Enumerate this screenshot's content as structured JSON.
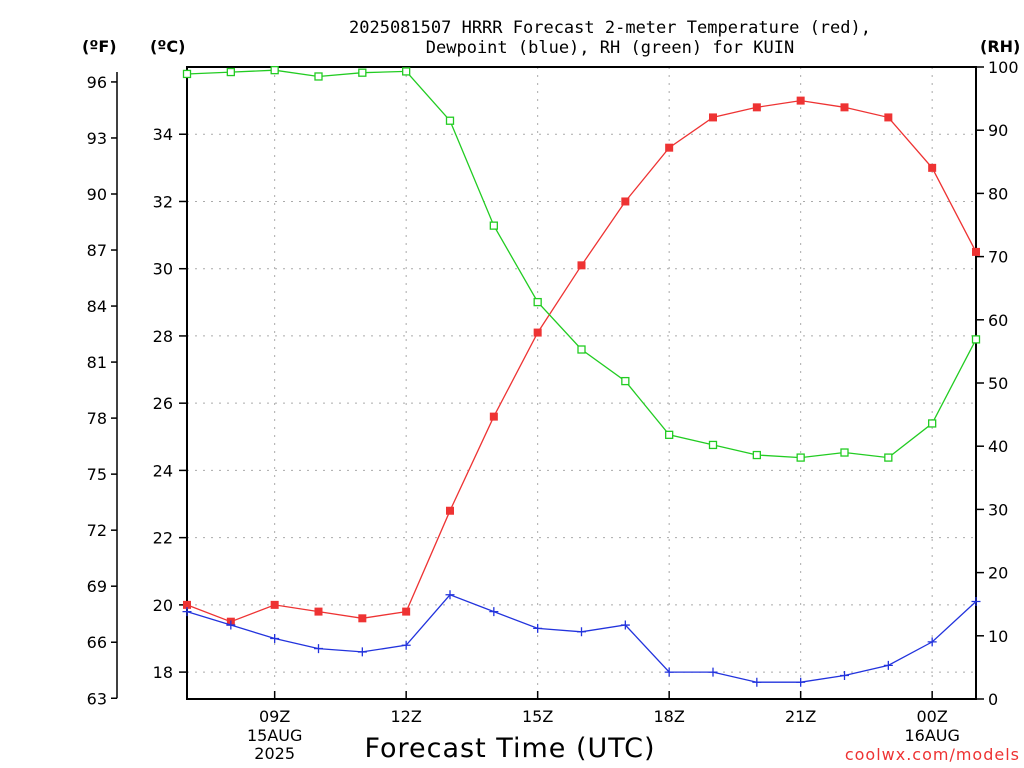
{
  "header": {
    "title_line1": "2025081507 HRRR Forecast 2-meter Temperature (red),",
    "title_line2": "Dewpoint (blue), RH (green) for KUIN"
  },
  "units": {
    "f": "(ºF)",
    "c": "(ºC)",
    "rh": "(RH)"
  },
  "footer": {
    "xlabel": "Forecast Time (UTC)",
    "credit": "coolwx.com/models"
  },
  "colors": {
    "temperature": "#ee3333",
    "dewpoint": "#2233dd",
    "rh": "#22cc22",
    "grid": "#aaaaaa"
  },
  "chart_data": {
    "type": "line",
    "title": "2025081507 HRRR Forecast 2-meter Temperature (red), Dewpoint (blue), RH (green) for KUIN",
    "xlabel": "Forecast Time (UTC)",
    "x": [
      "2025-08-15 07Z",
      "2025-08-15 08Z",
      "2025-08-15 09Z",
      "2025-08-15 10Z",
      "2025-08-15 11Z",
      "2025-08-15 12Z",
      "2025-08-15 13Z",
      "2025-08-15 14Z",
      "2025-08-15 15Z",
      "2025-08-15 16Z",
      "2025-08-15 17Z",
      "2025-08-15 18Z",
      "2025-08-15 19Z",
      "2025-08-15 20Z",
      "2025-08-15 21Z",
      "2025-08-15 22Z",
      "2025-08-15 23Z",
      "2025-08-16 00Z",
      "2025-08-16 01Z"
    ],
    "x_ticks": [
      {
        "hour": 9,
        "label": "09Z"
      },
      {
        "hour": 12,
        "label": "12Z"
      },
      {
        "hour": 15,
        "label": "15Z"
      },
      {
        "hour": 18,
        "label": "18Z"
      },
      {
        "hour": 21,
        "label": "21Z"
      },
      {
        "hour": 24,
        "label": "00Z"
      }
    ],
    "date_labels": [
      {
        "hour": 9,
        "lines": [
          "15AUG",
          "2025"
        ]
      },
      {
        "hour": 24,
        "lines": [
          "16AUG"
        ]
      }
    ],
    "xlim_hours": [
      7,
      25
    ],
    "left_axis_c": {
      "ylim": [
        17.2,
        36.0
      ],
      "ticks": [
        18,
        20,
        22,
        24,
        26,
        28,
        30,
        32,
        34
      ]
    },
    "left_axis_f": {
      "ticks": [
        63,
        66,
        69,
        72,
        75,
        78,
        81,
        84,
        87,
        90,
        93,
        96
      ]
    },
    "right_axis_rh": {
      "ylim": [
        0,
        100
      ],
      "ticks": [
        0,
        10,
        20,
        30,
        40,
        50,
        60,
        70,
        80,
        90,
        100
      ]
    },
    "grid": true,
    "series": [
      {
        "name": "Temperature",
        "axis": "c",
        "marker": "filled-square",
        "values": [
          20.0,
          19.5,
          20.0,
          19.8,
          19.6,
          19.8,
          22.8,
          25.6,
          28.1,
          30.1,
          32.0,
          33.6,
          34.5,
          34.8,
          35.0,
          34.8,
          34.5,
          33.0,
          30.5
        ]
      },
      {
        "name": "Dewpoint",
        "axis": "c",
        "marker": "plus",
        "values": [
          19.8,
          19.4,
          19.0,
          18.7,
          18.6,
          18.8,
          20.3,
          19.8,
          19.3,
          19.2,
          19.4,
          18.0,
          18.0,
          17.7,
          17.7,
          17.9,
          18.2,
          18.9,
          20.1
        ]
      },
      {
        "name": "RH",
        "axis": "rh",
        "marker": "open-square",
        "values": [
          98.9,
          99.2,
          99.5,
          98.5,
          99.1,
          99.3,
          91.5,
          74.9,
          62.8,
          55.3,
          50.3,
          41.8,
          40.2,
          38.6,
          38.2,
          39.0,
          38.2,
          43.6,
          56.9
        ]
      }
    ]
  }
}
